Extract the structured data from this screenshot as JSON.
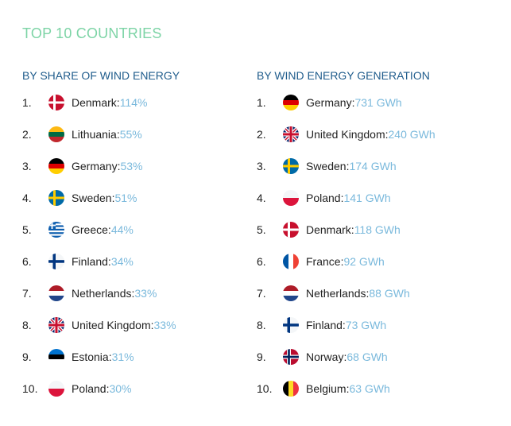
{
  "title": "TOP 10 COUNTRIES",
  "colors": {
    "title": "#7dd4a6",
    "heading": "#1f5c8c",
    "value": "#7ab9dc",
    "text": "#222222"
  },
  "left": {
    "heading": "BY SHARE OF WIND ENERGY",
    "items": [
      {
        "rank": "1.",
        "flag": "dk-flag-icon",
        "country": "Denmark",
        "value": "114%"
      },
      {
        "rank": "2.",
        "flag": "lt-flag-icon",
        "country": "Lithuania",
        "value": "55%"
      },
      {
        "rank": "3.",
        "flag": "de-flag-icon",
        "country": "Germany",
        "value": "53%"
      },
      {
        "rank": "4.",
        "flag": "se-flag-icon",
        "country": "Sweden",
        "value": "51%"
      },
      {
        "rank": "5.",
        "flag": "gr-flag-icon",
        "country": "Greece",
        "value": "44%"
      },
      {
        "rank": "6.",
        "flag": "fi-flag-icon",
        "country": "Finland",
        "value": "34%"
      },
      {
        "rank": "7.",
        "flag": "nl-flag-icon",
        "country": "Netherlands",
        "value": "33%"
      },
      {
        "rank": "8.",
        "flag": "gb-flag-icon",
        "country": "United Kingdom",
        "value": "33%"
      },
      {
        "rank": "9.",
        "flag": "ee-flag-icon",
        "country": "Estonia",
        "value": "31%"
      },
      {
        "rank": "10.",
        "flag": "pl-flag-icon",
        "country": "Poland",
        "value": "30%"
      }
    ]
  },
  "right": {
    "heading": "BY WIND ENERGY GENERATION",
    "items": [
      {
        "rank": "1.",
        "flag": "de-flag-icon",
        "country": "Germany",
        "value": "731 GWh"
      },
      {
        "rank": "2.",
        "flag": "gb-flag-icon",
        "country": "United Kingdom",
        "value": "240 GWh"
      },
      {
        "rank": "3.",
        "flag": "se-flag-icon",
        "country": "Sweden",
        "value": "174 GWh"
      },
      {
        "rank": "4.",
        "flag": "pl-flag-icon",
        "country": "Poland",
        "value": "141 GWh"
      },
      {
        "rank": "5.",
        "flag": "dk-flag-icon",
        "country": "Denmark",
        "value": "118 GWh"
      },
      {
        "rank": "6.",
        "flag": "fr-flag-icon",
        "country": "France",
        "value": "92 GWh"
      },
      {
        "rank": "7.",
        "flag": "nl-flag-icon",
        "country": "Netherlands",
        "value": "88 GWh"
      },
      {
        "rank": "8.",
        "flag": "fi-flag-icon",
        "country": "Finland",
        "value": "73 GWh"
      },
      {
        "rank": "9.",
        "flag": "no-flag-icon",
        "country": "Norway",
        "value": "68 GWh"
      },
      {
        "rank": "10.",
        "flag": "be-flag-icon",
        "country": "Belgium",
        "value": "63 GWh"
      }
    ]
  }
}
